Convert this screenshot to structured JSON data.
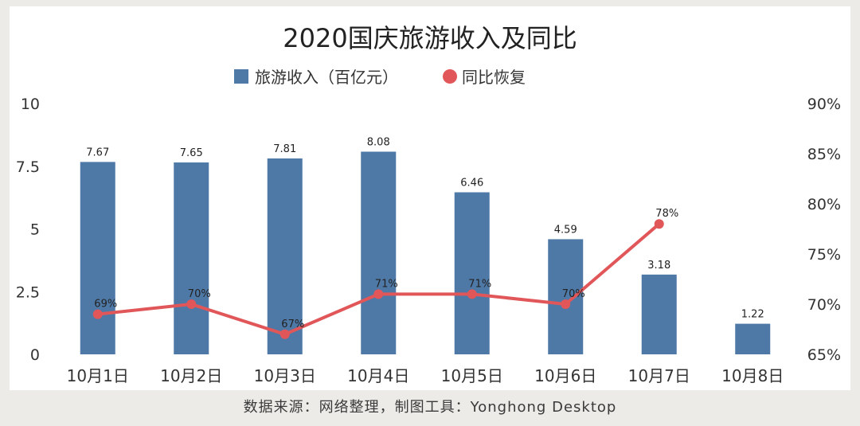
{
  "footer_text": "数据来源：网络整理，制图工具：Yonghong Desktop",
  "chart_data": {
    "type": "bar",
    "title": "2020国庆旅游收入及同比",
    "categories": [
      "10月1日",
      "10月2日",
      "10月3日",
      "10月4日",
      "10月5日",
      "10月6日",
      "10月7日",
      "10月8日"
    ],
    "series": [
      {
        "name": "旅游收入（百亿元）",
        "type": "bar",
        "axis": "left",
        "color": "#4e79a7",
        "values": [
          7.67,
          7.65,
          7.81,
          8.08,
          6.46,
          4.59,
          3.18,
          1.22
        ],
        "labels": [
          "7.67",
          "7.65",
          "7.81",
          "8.08",
          "6.46",
          "4.59",
          "3.18",
          "1.22"
        ]
      },
      {
        "name": "同比恢复",
        "type": "line",
        "axis": "right",
        "color": "#e15759",
        "values": [
          69,
          70,
          67,
          71,
          71,
          70,
          78,
          null
        ],
        "labels": [
          "69%",
          "70%",
          "67%",
          "71%",
          "71%",
          "70%",
          "78%",
          ""
        ]
      }
    ],
    "y_left": {
      "range": [
        0,
        10
      ],
      "ticks": [
        0,
        2.5,
        5,
        7.5,
        10
      ],
      "tick_labels": [
        "0",
        "2.5",
        "5",
        "7.5",
        "10"
      ]
    },
    "y_right": {
      "range": [
        65,
        90
      ],
      "ticks": [
        65,
        70,
        75,
        80,
        85,
        90
      ],
      "tick_labels": [
        "65%",
        "70%",
        "75%",
        "80%",
        "85%",
        "90%"
      ]
    },
    "grid": false,
    "legend_position": "top-center"
  }
}
